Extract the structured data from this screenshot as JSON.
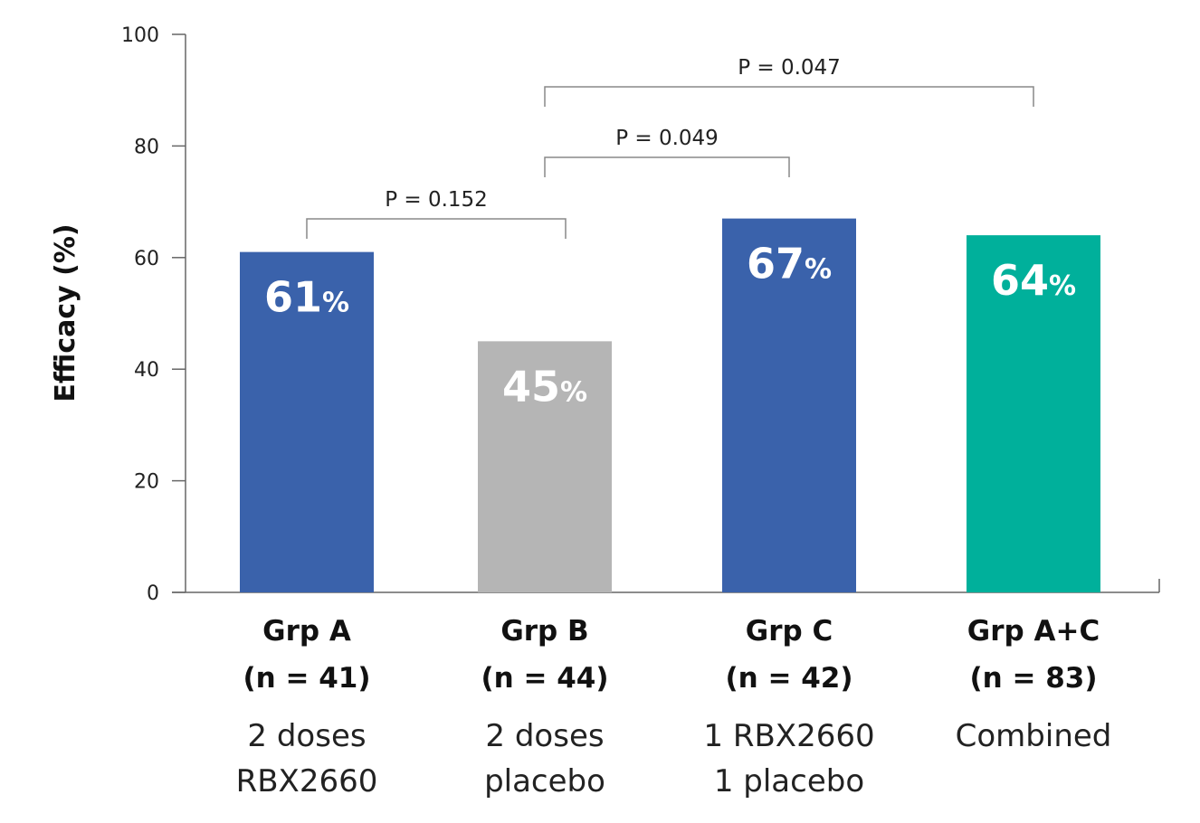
{
  "chart_data": {
    "type": "bar",
    "ylabel": "Efficacy (%)",
    "ylim": [
      0,
      100
    ],
    "yticks": [
      0,
      20,
      40,
      60,
      80,
      100
    ],
    "categories": [
      {
        "name": "Grp A",
        "n": "(n = 41)",
        "desc": [
          "2 doses",
          "RBX2660"
        ],
        "value": 61,
        "color": "#3a62ab"
      },
      {
        "name": "Grp B",
        "n": "(n = 44)",
        "desc": [
          "2 doses",
          "placebo"
        ],
        "value": 45,
        "color": "#b5b5b5"
      },
      {
        "name": "Grp C",
        "n": "(n = 42)",
        "desc": [
          "1 RBX2660",
          "1 placebo"
        ],
        "value": 67,
        "color": "#3a62ab"
      },
      {
        "name": "Grp A+C",
        "n": "(n = 83)",
        "desc": [
          "Combined"
        ],
        "value": 64,
        "color": "#00b09b"
      }
    ],
    "value_suffix": "%",
    "comparisons": [
      {
        "from": 0,
        "to": 1,
        "label": "P = 0.152"
      },
      {
        "from": 1,
        "to": 2,
        "label": "P = 0.049"
      },
      {
        "from": 1,
        "to": 3,
        "label": "P = 0.047"
      }
    ],
    "grid": false,
    "legend": "none"
  }
}
